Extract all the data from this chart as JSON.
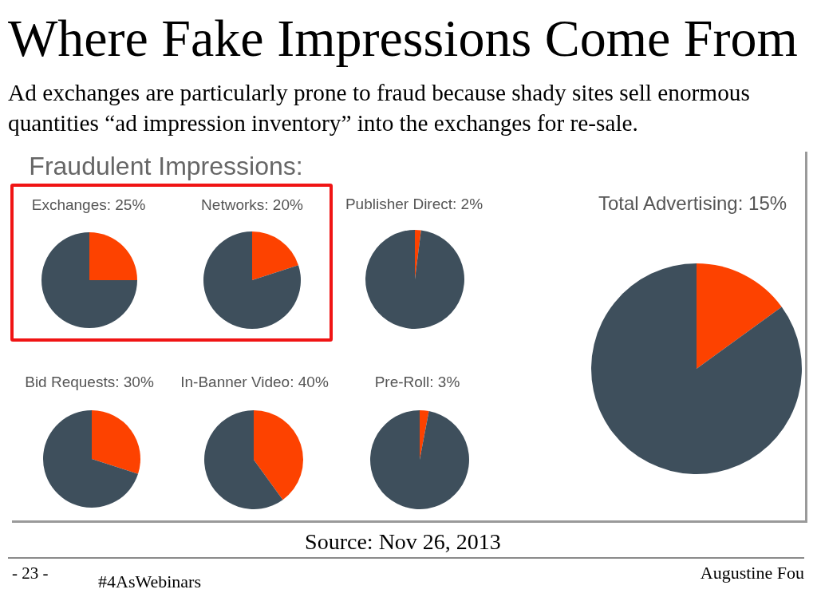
{
  "chart_data": [
    {
      "type": "other",
      "title": "Where Fake Impressions Come From",
      "subtitle": "Ad exchanges are particularly prone to fraud because shady sites sell enormous quantities “ad impression inventory” into the exchanges for re-sale.",
      "annotations": [
        "Fraudulent Impressions:",
        "Source: Nov 26, 2013",
        "- 23 -",
        "#4AsWebinars",
        "Augustine Fou"
      ]
    },
    {
      "type": "pie",
      "title": "Exchanges: 25%",
      "categories": [
        null,
        null
      ],
      "values": [
        25,
        75
      ],
      "colors": [
        "#fd4200",
        "#3e4f5c"
      ]
    },
    {
      "type": "pie",
      "title": "Networks: 20%",
      "categories": [
        null,
        null
      ],
      "values": [
        20,
        80
      ],
      "colors": [
        "#fd4200",
        "#3e4f5c"
      ]
    },
    {
      "type": "pie",
      "title": "Publisher Direct: 2%",
      "categories": [
        null,
        null
      ],
      "values": [
        2,
        98
      ],
      "colors": [
        "#fd4200",
        "#3e4f5c"
      ]
    },
    {
      "type": "pie",
      "title": "Total Advertising: 15%",
      "categories": [
        null,
        null
      ],
      "values": [
        15,
        85
      ],
      "colors": [
        "#fd4200",
        "#3e4f5c"
      ]
    },
    {
      "type": "pie",
      "title": "Bid Requests: 30%",
      "categories": [
        null,
        null
      ],
      "values": [
        30,
        70
      ],
      "colors": [
        "#fd4200",
        "#3e4f5c"
      ]
    },
    {
      "type": "pie",
      "title": "In-Banner Video: 40%",
      "categories": [
        null,
        null
      ],
      "values": [
        40,
        60
      ],
      "colors": [
        "#fd4200",
        "#3e4f5c"
      ]
    },
    {
      "type": "pie",
      "title": "Pre-Roll: 3%",
      "categories": [
        null,
        null
      ],
      "values": [
        3,
        97
      ],
      "colors": [
        "#fd4200",
        "#3e4f5c"
      ]
    }
  ]
}
